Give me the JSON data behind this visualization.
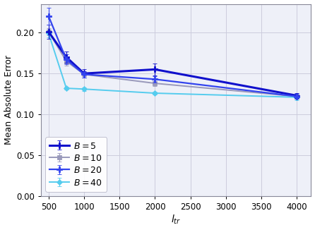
{
  "x": [
    500,
    750,
    1000,
    2000,
    4000
  ],
  "series": [
    {
      "key": "B=5",
      "y": [
        0.201,
        0.17,
        0.15,
        0.155,
        0.123
      ],
      "yerr": [
        0.009,
        0.007,
        0.005,
        0.007,
        0.003
      ],
      "color": "#1010CC",
      "marker": "P",
      "markersize": 6,
      "label": "$B = 5$",
      "linewidth": 2.2,
      "zorder": 4
    },
    {
      "key": "B=10",
      "y": [
        0.201,
        0.165,
        0.149,
        0.138,
        0.122
      ],
      "yerr": [
        0.004,
        0.005,
        0.004,
        0.003,
        0.002
      ],
      "color": "#9999BB",
      "marker": "s",
      "markersize": 5,
      "label": "$B = 10$",
      "linewidth": 1.4,
      "zorder": 3
    },
    {
      "key": "B=20",
      "y": [
        0.22,
        0.167,
        0.149,
        0.143,
        0.122
      ],
      "yerr": [
        0.01,
        0.006,
        0.004,
        0.004,
        0.003
      ],
      "color": "#3344EE",
      "marker": "P",
      "markersize": 6,
      "label": "$B = 20$",
      "linewidth": 1.6,
      "zorder": 4
    },
    {
      "key": "B=40",
      "y": [
        0.199,
        0.132,
        0.131,
        0.126,
        0.121
      ],
      "yerr": [
        0.005,
        0.002,
        0.002,
        0.002,
        0.004
      ],
      "color": "#55CCEE",
      "marker": "D",
      "markersize": 4,
      "label": "$B = 40$",
      "linewidth": 1.4,
      "zorder": 3
    }
  ],
  "xlabel": "$l_{tr}$",
  "ylabel": "Mean Absolute Error",
  "xlim": [
    390,
    4200
  ],
  "ylim": [
    0.0,
    0.235
  ],
  "xticks": [
    500,
    1000,
    1500,
    2000,
    2500,
    3000,
    3500,
    4000
  ],
  "yticks": [
    0.0,
    0.05,
    0.1,
    0.15,
    0.2
  ],
  "grid_color": "#ccccdd",
  "background_color": "#eef0f8",
  "figsize": [
    4.46,
    3.26
  ],
  "dpi": 100
}
